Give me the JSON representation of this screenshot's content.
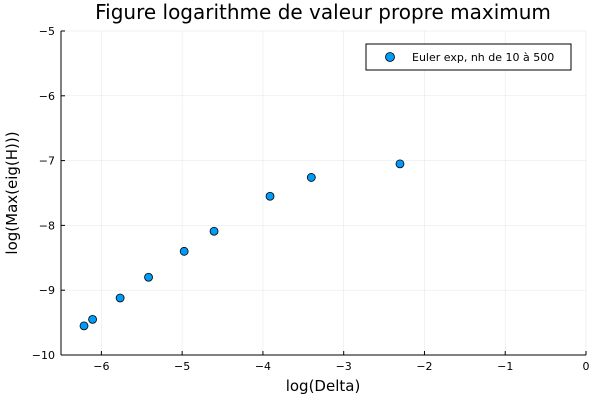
{
  "chart_data": {
    "type": "scatter",
    "title": "Figure logarithme de valeur propre maximum",
    "xlabel": "log(Delta)",
    "ylabel": "log(Max(eig(H)))",
    "xlim": [
      -6.5,
      0
    ],
    "ylim": [
      -10,
      -5
    ],
    "xticks": [
      -6,
      -5,
      -4,
      -3,
      -2,
      -1,
      0
    ],
    "yticks": [
      -10,
      -9,
      -8,
      -7,
      -6,
      -5
    ],
    "xtick_labels": [
      "−6",
      "−5",
      "−4",
      "−3",
      "−2",
      "−1",
      "0"
    ],
    "ytick_labels": [
      "−10",
      "−9",
      "−8",
      "−7",
      "−6",
      "−5"
    ],
    "grid": true,
    "legend_position": "top-right",
    "series": [
      {
        "name": "Euler exp, nh de 10 à 500",
        "color": "#009af9",
        "x": [
          -6.215,
          -6.109,
          -5.768,
          -5.416,
          -4.975,
          -4.605,
          -3.912,
          -3.401,
          -2.303
        ],
        "y": [
          -9.55,
          -9.45,
          -9.12,
          -8.8,
          -8.4,
          -8.09,
          -7.55,
          -7.26,
          -7.05
        ]
      }
    ]
  }
}
